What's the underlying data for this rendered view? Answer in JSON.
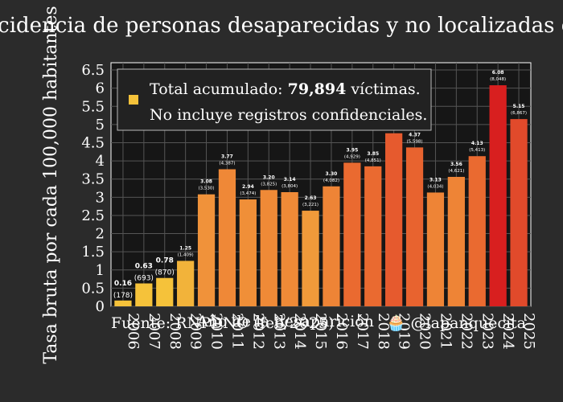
{
  "chart_data": {
    "type": "bar",
    "title": "Incidencia de personas desaparecidas y no localizadas en",
    "xlabel": "Año de la desaparición",
    "ylabel": "Tasa bruta por cada 100,000 habitantes",
    "ylim": [
      0,
      6.7
    ],
    "yticks": [
      "0",
      "0.5",
      "1",
      "1.5",
      "2",
      "2.5",
      "3",
      "3.5",
      "4",
      "4.5",
      "5",
      "5.5",
      "6",
      "6.5"
    ],
    "grid": true,
    "categories": [
      "2006",
      "2007",
      "2008",
      "2009",
      "2010",
      "2011",
      "2012",
      "2013",
      "2014",
      "2015",
      "2016",
      "2017",
      "2018",
      "2019",
      "2020",
      "2021",
      "2022",
      "2023",
      "2024",
      "2025"
    ],
    "values": [
      0.16,
      0.63,
      0.78,
      1.25,
      3.08,
      3.77,
      2.94,
      3.2,
      3.14,
      2.63,
      3.3,
      3.95,
      3.85,
      4.76,
      4.37,
      3.13,
      3.56,
      4.13,
      6.08,
      5.15
    ],
    "value_labels": [
      "0.16",
      "0.63",
      "0.78",
      "1.25",
      "3.08",
      "3.77",
      "2.94",
      "3.20",
      "3.14",
      "2.63",
      "3.30",
      "3.95",
      "3.85",
      "",
      "4.37",
      "3.13",
      "3.56",
      "4.13",
      "6.08",
      "5.15"
    ],
    "count_labels": [
      "(178)",
      "(693)",
      "(870)",
      "(1,409)",
      "(3,530)",
      "(4,387)",
      "(3,474)",
      "(3,825)",
      "(3,804)",
      "(3,221)",
      "(4,082)",
      "(4,929)",
      "(4,851)",
      "",
      "(5,598)",
      "(4,034)",
      "(4,621)",
      "(5,413)",
      "(8,048)",
      "(6,867)"
    ],
    "colors": [
      "#f5c23a",
      "#f5c23a",
      "#f5c23a",
      "#f2b33a",
      "#f0923a",
      "#ef8837",
      "#f08f38",
      "#ef8a37",
      "#ef8a37",
      "#f09a3a",
      "#ee8436",
      "#ea6a30",
      "#ea6a30",
      "#e65a2e",
      "#e8632f",
      "#ee8436",
      "#ee8436",
      "#ea6a30",
      "#d81f1f",
      "#e14a2b"
    ],
    "legend": {
      "marker_color": "#f5c23a",
      "line1_prefix": "Total acumulado: ",
      "line1_bold": "79,894",
      "line1_suffix": " víctimas.",
      "line2": "No incluye registros confidenciales."
    },
    "source": "Fuente: RNPDNO (feb/2025)",
    "handle": "🧁 @lapanquecita"
  }
}
